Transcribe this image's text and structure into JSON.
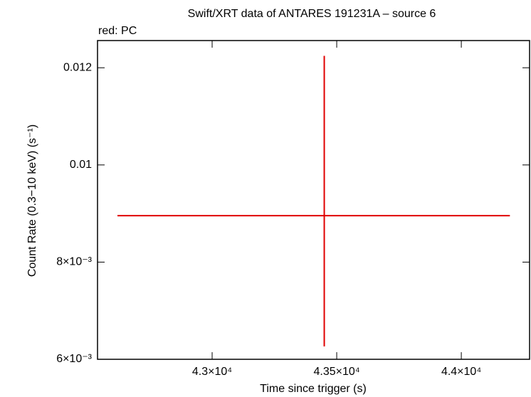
{
  "chart_data": {
    "type": "errorbar",
    "title": "Swift/XRT data of ANTARES 191231A – source 6",
    "subtitle": "red: PC",
    "xlabel": "Time since trigger (s)",
    "ylabel": "Count Rate (0.3−10 keV) (s⁻¹)",
    "xlim": [
      42540,
      44274
    ],
    "ylim": [
      0.006,
      0.01256
    ],
    "xticks": [
      {
        "value": 43000,
        "label": "4.3×10⁴"
      },
      {
        "value": 43500,
        "label": "4.35×10⁴"
      },
      {
        "value": 44000,
        "label": "4.4×10⁴"
      }
    ],
    "yticks": [
      {
        "value": 0.006,
        "label": "6×10⁻³"
      },
      {
        "value": 0.008,
        "label": "8×10⁻³"
      },
      0.01,
      0.012
    ],
    "series": [
      {
        "color": "#e00000",
        "x": [
          43450
        ],
        "values": [
          0.008956
        ],
        "xerr_minus": [
          830
        ],
        "xerr_plus": [
          745
        ],
        "yerr_minus": [
          0.00269
        ],
        "yerr_plus": [
          0.00329
        ]
      }
    ]
  }
}
